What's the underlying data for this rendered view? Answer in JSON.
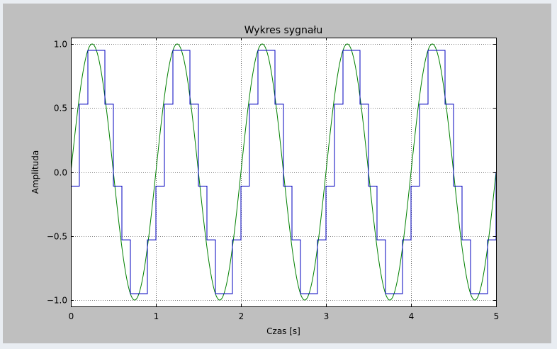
{
  "chart_data": {
    "type": "line",
    "title": "Wykres sygnału",
    "xlabel": "Czas [s]",
    "ylabel": "Amplituda",
    "xlim": [
      0,
      5
    ],
    "ylim": [
      -1.05,
      1.05
    ],
    "xticks": [
      0,
      1,
      2,
      3,
      4,
      5
    ],
    "xtick_labels": [
      "0",
      "1",
      "2",
      "3",
      "4",
      "5"
    ],
    "yticks": [
      -1.0,
      -0.5,
      0.0,
      0.5,
      1.0
    ],
    "ytick_labels": [
      "−1.0",
      "−0.5",
      "0.0",
      "0.5",
      "1.0"
    ],
    "grid": true,
    "series": [
      {
        "kind": "sine",
        "frequency_hz": 1,
        "amplitude": 1,
        "color": "#008000",
        "style": "smooth"
      },
      {
        "kind": "staircase",
        "color": "#0000bf",
        "style": "steps",
        "x": [
          0.0,
          0.1,
          0.2,
          0.4,
          0.5,
          0.6,
          0.7,
          0.9,
          1.0,
          1.1,
          1.2,
          1.4,
          1.5,
          1.6,
          1.7,
          1.9,
          2.0,
          2.1,
          2.2,
          2.4,
          2.5,
          2.6,
          2.7,
          2.9,
          3.0,
          3.1,
          3.2,
          3.4,
          3.5,
          3.6,
          3.7,
          3.9,
          4.0,
          4.1,
          4.2,
          4.4,
          4.5,
          4.6,
          4.7,
          4.9,
          5.0
        ],
        "y": [
          -0.11,
          0.53,
          0.95,
          0.53,
          -0.11,
          -0.53,
          -0.95,
          -0.53,
          -0.11,
          0.53,
          0.95,
          0.53,
          -0.11,
          -0.53,
          -0.95,
          -0.53,
          -0.11,
          0.53,
          0.95,
          0.53,
          -0.11,
          -0.53,
          -0.95,
          -0.53,
          -0.11,
          0.53,
          0.95,
          0.53,
          -0.11,
          -0.53,
          -0.95,
          -0.53,
          -0.11,
          0.53,
          0.95,
          0.53,
          -0.11,
          -0.53,
          -0.95,
          -0.53,
          0.0
        ]
      }
    ]
  },
  "colors": {
    "figure_background": "#bfbfbf",
    "axes_background": "#ffffff",
    "window_background": "#e9edf2"
  }
}
